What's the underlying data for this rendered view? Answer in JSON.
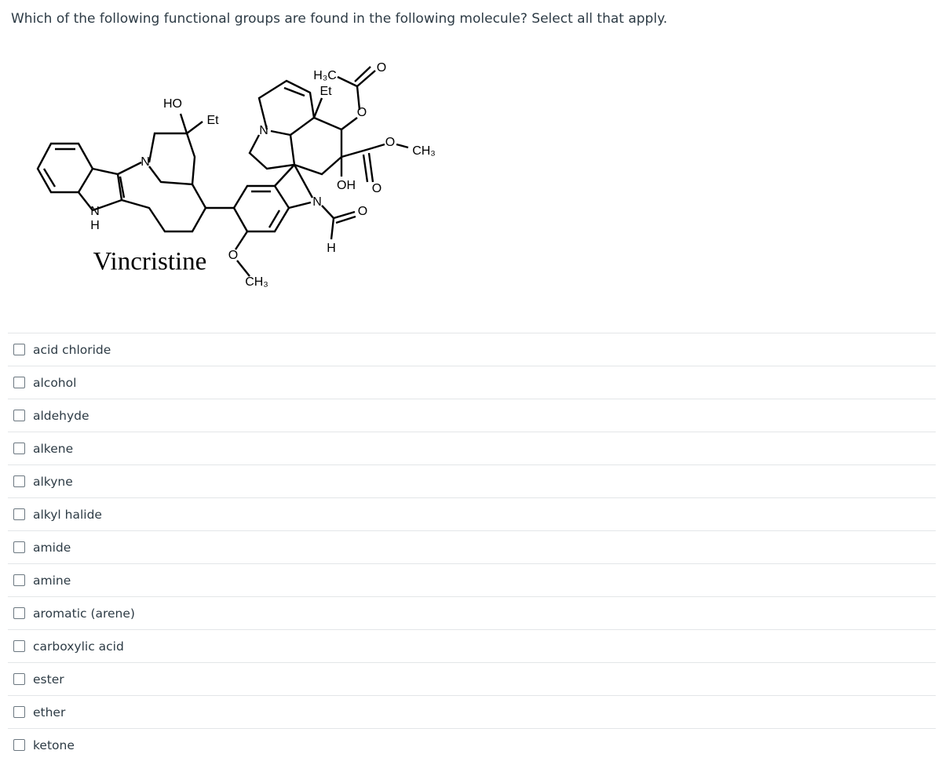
{
  "question": "Which of the following functional groups are found in the following molecule? Select all that apply.",
  "molecule": {
    "name": "Vincristine",
    "atom_labels": [
      "HO",
      "Et",
      "N",
      "N",
      "H",
      "N",
      "H₃C",
      "Et",
      "O",
      "O",
      "O",
      "CH₃",
      "OH",
      "O",
      "N",
      "O",
      "H",
      "O",
      "CH₃"
    ]
  },
  "options": [
    "acid chloride",
    "alcohol",
    "aldehyde",
    "alkene",
    "alkyne",
    "alkyl halide",
    "amide",
    "amine",
    "aromatic (arene)",
    "carboxylic acid",
    "ester",
    "ether",
    "ketone"
  ]
}
